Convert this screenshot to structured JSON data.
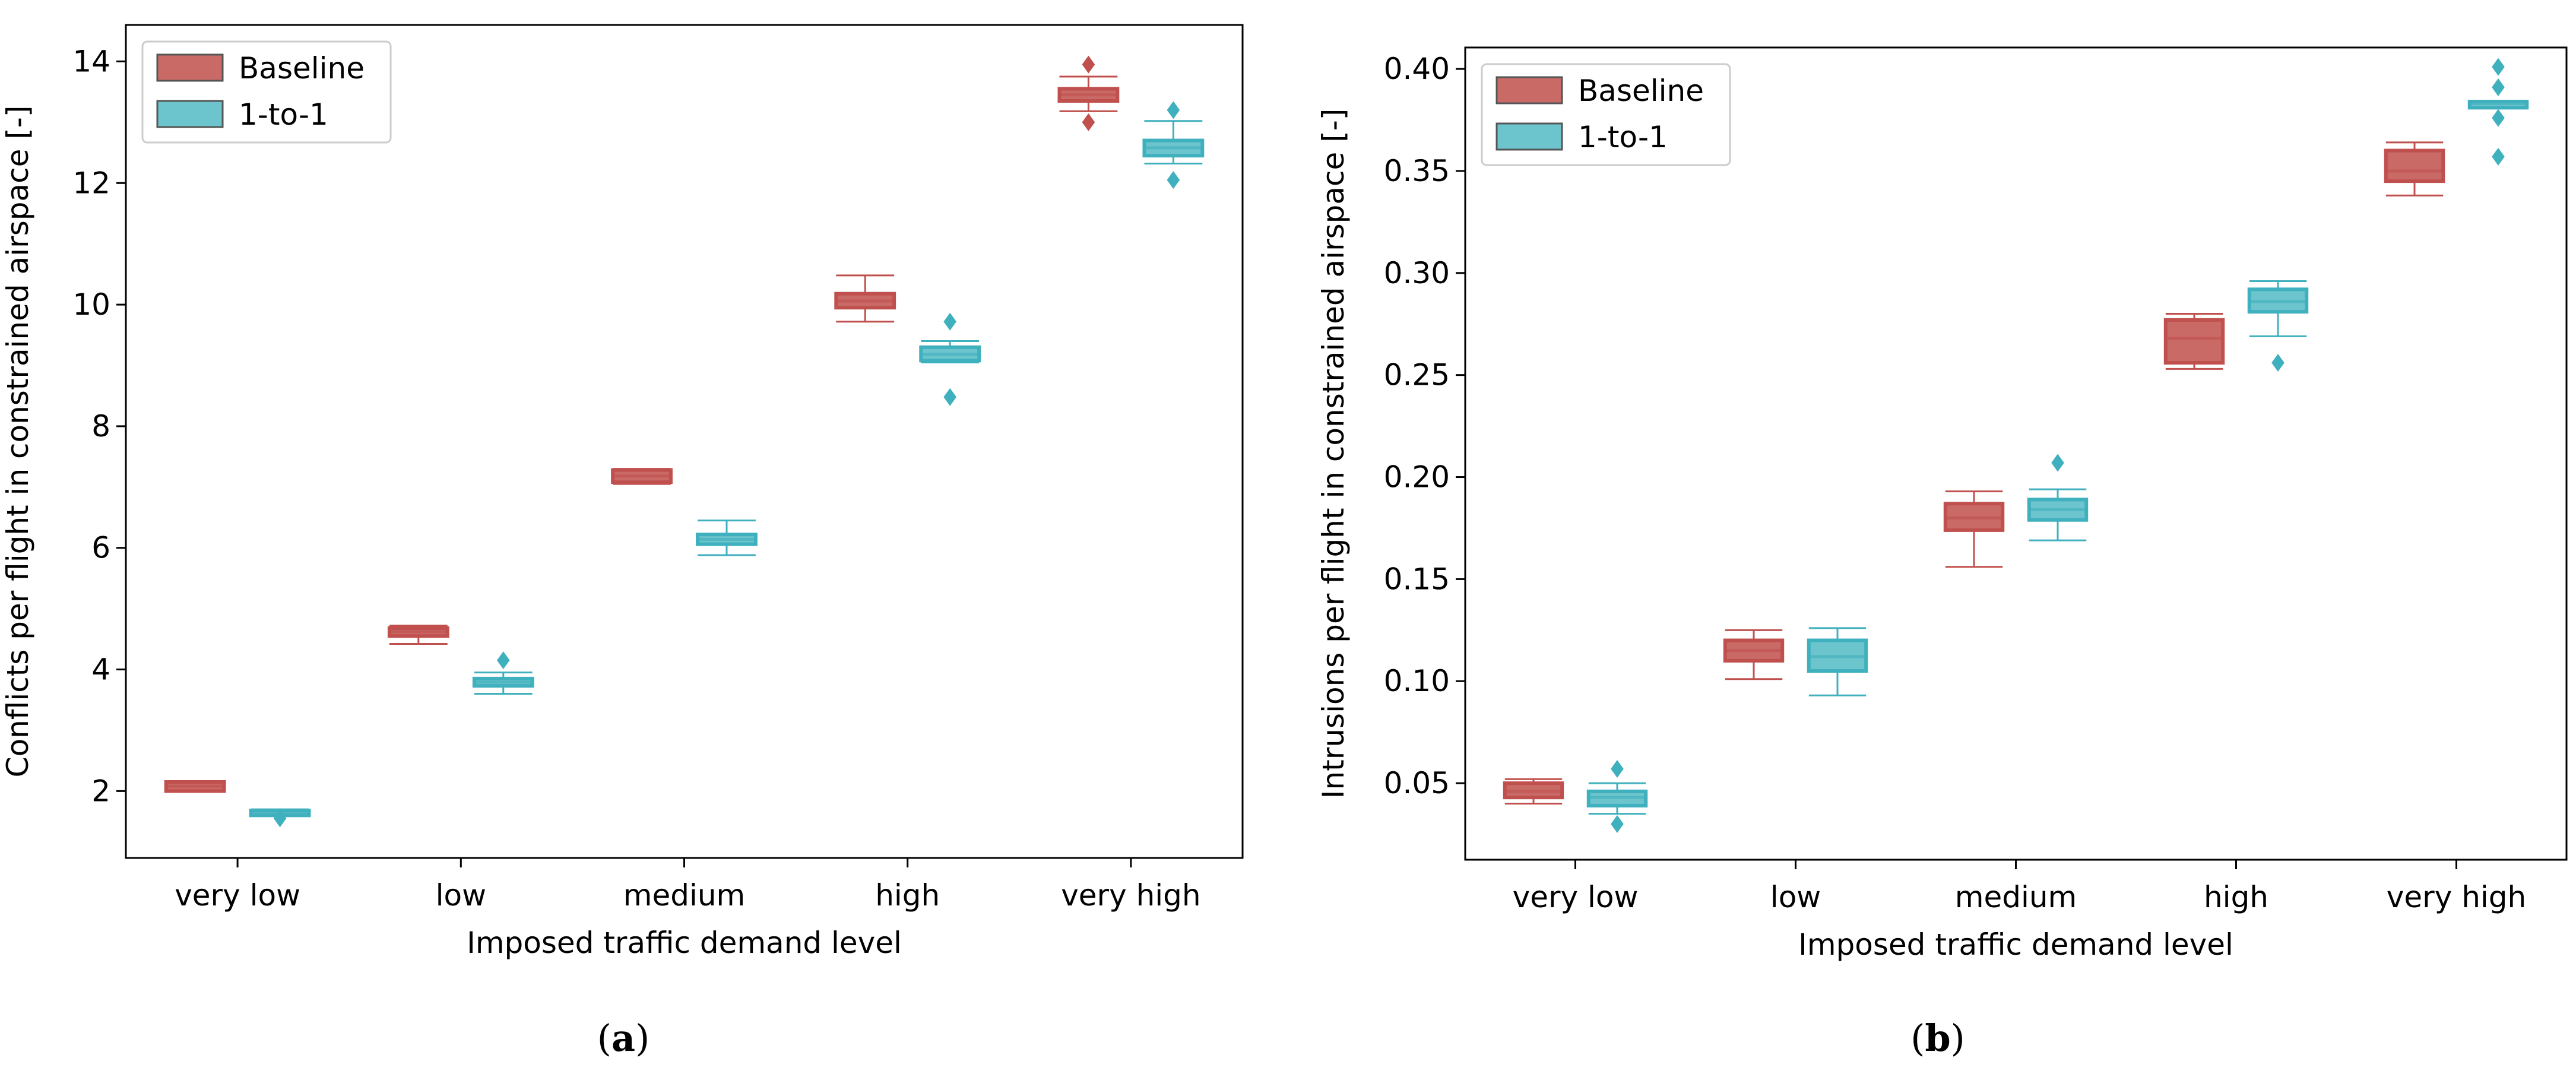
{
  "colors": {
    "baseline": "#c0504d",
    "baseline_fill": "#c96a67",
    "one_to_one": "#3fb0bd",
    "one_to_one_fill": "#6cc4cd"
  },
  "chart_data": [
    {
      "type": "box",
      "panel_label": "a",
      "xlabel": "Imposed traffic demand level",
      "ylabel": "Conflicts per flight in constrained airspace [-]",
      "categories": [
        "very low",
        "low",
        "medium",
        "high",
        "very high"
      ],
      "ylim": [
        0.9,
        14.6
      ],
      "yticks": [
        2,
        4,
        6,
        8,
        10,
        12,
        14
      ],
      "ytick_labels": [
        "2",
        "4",
        "6",
        "8",
        "10",
        "12",
        "14"
      ],
      "legend": [
        "Baseline",
        "1-to-1"
      ],
      "legend_loc": "upper left",
      "series": [
        {
          "name": "Baseline",
          "boxes": [
            {
              "whislo": 2.0,
              "q1": 2.0,
              "med": 2.08,
              "q3": 2.15,
              "whishi": 2.15,
              "fliers": []
            },
            {
              "whislo": 4.42,
              "q1": 4.55,
              "med": 4.62,
              "q3": 4.68,
              "whishi": 4.72,
              "fliers": []
            },
            {
              "whislo": 7.05,
              "q1": 7.08,
              "med": 7.18,
              "q3": 7.28,
              "whishi": 7.3,
              "fliers": []
            },
            {
              "whislo": 9.72,
              "q1": 9.95,
              "med": 10.06,
              "q3": 10.18,
              "whishi": 10.48,
              "fliers": []
            },
            {
              "whislo": 13.18,
              "q1": 13.35,
              "med": 13.45,
              "q3": 13.55,
              "whishi": 13.75,
              "fliers": [
                13.0,
                13.95
              ]
            }
          ]
        },
        {
          "name": "1-to-1",
          "boxes": [
            {
              "whislo": 1.6,
              "q1": 1.6,
              "med": 1.64,
              "q3": 1.68,
              "whishi": 1.7,
              "fliers": [
                1.55
              ]
            },
            {
              "whislo": 3.6,
              "q1": 3.73,
              "med": 3.79,
              "q3": 3.85,
              "whishi": 3.95,
              "fliers": [
                4.15
              ]
            },
            {
              "whislo": 5.88,
              "q1": 6.06,
              "med": 6.14,
              "q3": 6.22,
              "whishi": 6.45,
              "fliers": []
            },
            {
              "whislo": 9.05,
              "q1": 9.08,
              "med": 9.18,
              "q3": 9.3,
              "whishi": 9.4,
              "fliers": [
                8.48,
                9.72
              ]
            },
            {
              "whislo": 12.32,
              "q1": 12.45,
              "med": 12.58,
              "q3": 12.7,
              "whishi": 13.02,
              "fliers": [
                12.05,
                13.2
              ]
            }
          ]
        }
      ]
    },
    {
      "type": "box",
      "panel_label": "b",
      "xlabel": "Imposed traffic demand level",
      "ylabel": "Intrusions per flight in constrained airspace [-]",
      "categories": [
        "very low",
        "low",
        "medium",
        "high",
        "very high"
      ],
      "ylim": [
        0.0125,
        0.4105
      ],
      "yticks": [
        0.05,
        0.1,
        0.15,
        0.2,
        0.25,
        0.3,
        0.35,
        0.4
      ],
      "ytick_labels": [
        "0.05",
        "0.10",
        "0.15",
        "0.20",
        "0.25",
        "0.30",
        "0.35",
        "0.40"
      ],
      "legend": [
        "Baseline",
        "1-to-1"
      ],
      "legend_loc": "upper left",
      "series": [
        {
          "name": "Baseline",
          "boxes": [
            {
              "whislo": 0.04,
              "q1": 0.043,
              "med": 0.046,
              "q3": 0.05,
              "whishi": 0.052,
              "fliers": []
            },
            {
              "whislo": 0.101,
              "q1": 0.11,
              "med": 0.115,
              "q3": 0.12,
              "whishi": 0.125,
              "fliers": []
            },
            {
              "whislo": 0.156,
              "q1": 0.174,
              "med": 0.18,
              "q3": 0.187,
              "whishi": 0.193,
              "fliers": []
            },
            {
              "whislo": 0.253,
              "q1": 0.256,
              "med": 0.268,
              "q3": 0.277,
              "whishi": 0.28,
              "fliers": []
            },
            {
              "whislo": 0.338,
              "q1": 0.345,
              "med": 0.35,
              "q3": 0.36,
              "whishi": 0.364,
              "fliers": []
            }
          ]
        },
        {
          "name": "1-to-1",
          "boxes": [
            {
              "whislo": 0.035,
              "q1": 0.039,
              "med": 0.043,
              "q3": 0.046,
              "whishi": 0.05,
              "fliers": [
                0.03,
                0.057
              ]
            },
            {
              "whislo": 0.093,
              "q1": 0.105,
              "med": 0.112,
              "q3": 0.12,
              "whishi": 0.126,
              "fliers": []
            },
            {
              "whislo": 0.169,
              "q1": 0.179,
              "med": 0.184,
              "q3": 0.189,
              "whishi": 0.194,
              "fliers": [
                0.207
              ]
            },
            {
              "whislo": 0.269,
              "q1": 0.281,
              "med": 0.286,
              "q3": 0.292,
              "whishi": 0.296,
              "fliers": [
                0.256
              ]
            },
            {
              "whislo": 0.381,
              "q1": 0.381,
              "med": 0.383,
              "q3": 0.384,
              "whishi": 0.384,
              "fliers": [
                0.357,
                0.376,
                0.391,
                0.401
              ]
            }
          ]
        }
      ]
    }
  ]
}
